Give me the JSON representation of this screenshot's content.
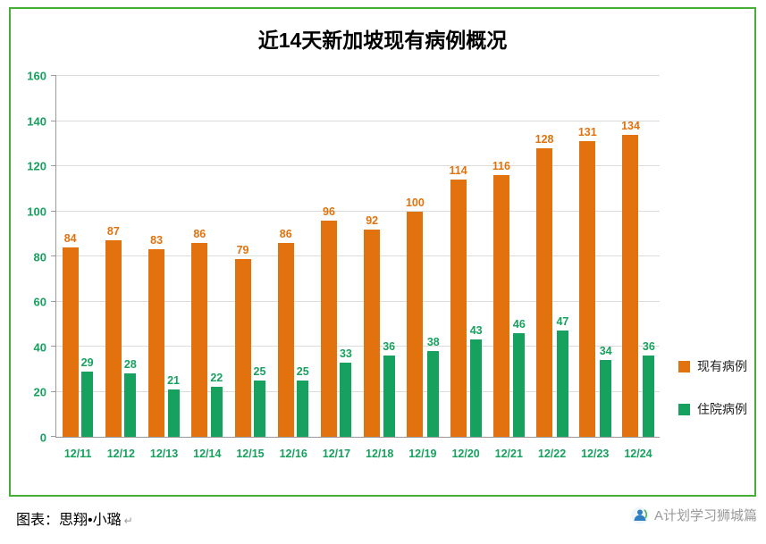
{
  "chart_data": {
    "type": "bar",
    "title": "近14天新加坡现有病例概况",
    "categories": [
      "12/11",
      "12/12",
      "12/13",
      "12/14",
      "12/15",
      "12/16",
      "12/17",
      "12/18",
      "12/19",
      "12/20",
      "12/21",
      "12/22",
      "12/23",
      "12/24"
    ],
    "series": [
      {
        "name": "现有病例",
        "color": "#E1720D",
        "values": [
          84,
          87,
          83,
          86,
          79,
          86,
          96,
          92,
          100,
          114,
          116,
          128,
          131,
          134
        ]
      },
      {
        "name": "住院病例",
        "color": "#17A15E",
        "values": [
          29,
          28,
          21,
          22,
          25,
          25,
          33,
          36,
          38,
          43,
          46,
          47,
          34,
          36
        ]
      }
    ],
    "ylim": [
      0,
      160
    ],
    "ytick_step": 20,
    "grid": true,
    "legend_position": "right"
  },
  "footer": {
    "credit": "图表：思翔•小璐",
    "mark": "↵",
    "brand": "A计划学习狮城篇"
  },
  "colors": {
    "frame": "#45B035",
    "green": "#17A15E",
    "grid": "#DCDCDC",
    "axis": "#9A9A9A"
  }
}
